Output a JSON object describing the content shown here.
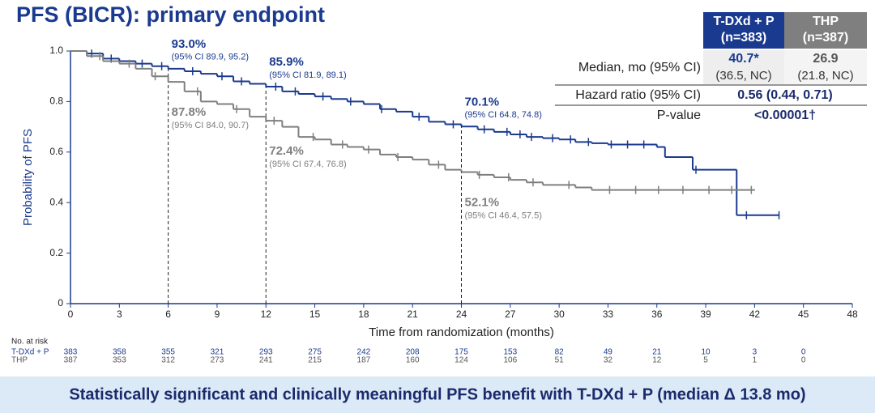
{
  "title": "PFS (BICR): primary endpoint",
  "chart_data": {
    "type": "km",
    "ylabel": "Probability of PFS",
    "xlabel": "Time from randomization (months)",
    "xlim": [
      0,
      48
    ],
    "xticks": [
      0,
      3,
      6,
      9,
      12,
      15,
      18,
      21,
      24,
      27,
      30,
      33,
      36,
      39,
      42,
      45,
      48
    ],
    "ylim": [
      0,
      1
    ],
    "yticks": [
      0,
      0.2,
      0.4,
      0.6,
      0.8,
      {
        "value": 1,
        "label": "1.0"
      }
    ],
    "series": [
      {
        "name": "T-DXd + P",
        "color": "#1a3a8f",
        "x": [
          0,
          1,
          2,
          3,
          4,
          5,
          6,
          7,
          8,
          9,
          10,
          11,
          12,
          13,
          14,
          15,
          16,
          17,
          18,
          19,
          20,
          21,
          22,
          23,
          24,
          25,
          26,
          27,
          28,
          29,
          30,
          31,
          32,
          33,
          36,
          36.5,
          38.2,
          40.9,
          43.5
        ],
        "values": [
          1,
          0.99,
          0.97,
          0.96,
          0.95,
          0.94,
          0.93,
          0.92,
          0.91,
          0.9,
          0.88,
          0.87,
          0.859,
          0.84,
          0.83,
          0.82,
          0.81,
          0.8,
          0.79,
          0.77,
          0.76,
          0.74,
          0.72,
          0.71,
          0.701,
          0.69,
          0.68,
          0.67,
          0.66,
          0.655,
          0.65,
          0.64,
          0.635,
          0.63,
          0.62,
          0.58,
          0.53,
          0.35,
          0.35
        ],
        "censored": [
          1.3,
          2.5,
          4.4,
          5.6,
          7.5,
          9.3,
          10.5,
          12.6,
          13.8,
          15.5,
          17.2,
          19.1,
          21.4,
          23.5,
          25.4,
          26.8,
          27.6,
          28.3,
          29.6,
          30.7,
          31.8,
          33.2,
          34.2,
          35.2,
          38.4,
          41.5,
          43.5
        ]
      },
      {
        "name": "THP",
        "color": "#7f7f7f",
        "x": [
          0,
          1,
          2,
          3,
          4,
          5,
          6,
          7,
          8,
          9,
          10,
          11,
          12,
          13,
          14,
          15,
          16,
          17,
          18,
          19,
          20,
          21,
          22,
          23,
          24,
          25,
          26,
          27,
          28,
          29,
          31,
          32,
          42
        ],
        "values": [
          1,
          0.98,
          0.96,
          0.95,
          0.93,
          0.9,
          0.878,
          0.84,
          0.8,
          0.79,
          0.77,
          0.74,
          0.724,
          0.7,
          0.66,
          0.65,
          0.63,
          0.62,
          0.61,
          0.59,
          0.58,
          0.57,
          0.55,
          0.53,
          0.521,
          0.51,
          0.5,
          0.49,
          0.48,
          0.47,
          0.46,
          0.45,
          0.45
        ],
        "censored": [
          1.8,
          3.6,
          5.2,
          7.8,
          10.2,
          12.5,
          14.9,
          16.7,
          18.3,
          20.1,
          22.6,
          25.1,
          26.9,
          28.4,
          30.6,
          33.1,
          34.7,
          36.1,
          37.6,
          39.2,
          40.6,
          41.8
        ]
      }
    ],
    "landmarks": [
      {
        "x": 6,
        "estimates": [
          {
            "value": 0.93,
            "label": "93.0%",
            "ci": "(95% CI 89.9, 95.2)"
          },
          {
            "value": 0.878,
            "label": "87.8%",
            "ci": "(95% CI 84.0, 90.7)"
          }
        ]
      },
      {
        "x": 12,
        "estimates": [
          {
            "value": 0.859,
            "label": "85.9%",
            "ci": "(95% CI 81.9, 89.1)"
          },
          {
            "value": 0.724,
            "label": "72.4%",
            "ci": "(95% CI 67.4, 76.8)"
          }
        ]
      },
      {
        "x": 24,
        "estimates": [
          {
            "value": 0.701,
            "label": "70.1%",
            "ci": "(95% CI 64.8, 74.8)"
          },
          {
            "value": 0.521,
            "label": "52.1%",
            "ci": "(95% CI 46.4, 57.5)"
          }
        ]
      }
    ]
  },
  "at_risk": {
    "title": "No. at risk",
    "rows": [
      {
        "name": "T-DXd + P",
        "values": [
          383,
          358,
          355,
          321,
          293,
          275,
          242,
          208,
          175,
          153,
          82,
          49,
          21,
          10,
          3,
          0
        ]
      },
      {
        "name": "THP",
        "values": [
          387,
          353,
          312,
          273,
          241,
          215,
          187,
          160,
          124,
          106,
          51,
          32,
          12,
          5,
          1,
          0
        ]
      }
    ]
  },
  "summary_table": {
    "headers": [
      [
        "T-DXd + P",
        "(n=383)"
      ],
      [
        "THP",
        "(n=387)"
      ]
    ],
    "rows": [
      {
        "label": "Median, mo (95% CI)",
        "cells": [
          [
            "40.7*",
            "(36.5, NC)"
          ],
          [
            "26.9",
            "(21.8, NC)"
          ]
        ]
      },
      {
        "label": "Hazard ratio (95% CI)",
        "value": "0.56 (0.44, 0.71)"
      },
      {
        "label": "P-value",
        "value": "<0.00001†"
      }
    ]
  },
  "footer": "Statistically significant and clinically meaningful PFS benefit with T-DXd + P (median Δ 13.8 mo)"
}
